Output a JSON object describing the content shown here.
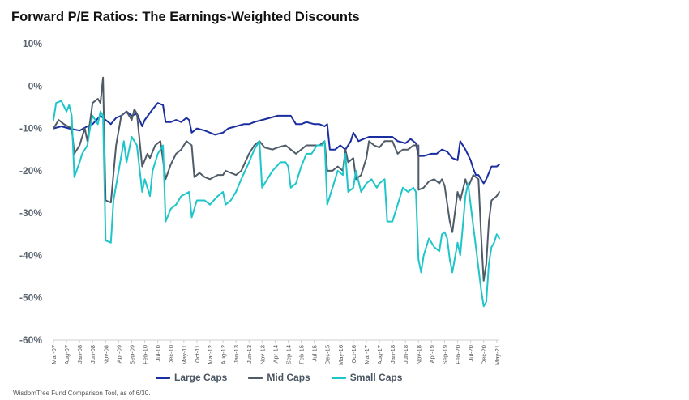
{
  "chart_data": {
    "type": "line",
    "title": "Forward P/E Ratios: The Earnings-Weighted Discounts",
    "xlabel": "",
    "ylabel": "",
    "ylim": [
      -60,
      10
    ],
    "y_ticks": [
      10,
      0,
      -10,
      -20,
      -30,
      -40,
      -50,
      -60
    ],
    "y_tick_labels": [
      "10%",
      "0%",
      "-10%",
      "-20%",
      "-30%",
      "-40%",
      "-50%",
      "-60%"
    ],
    "x_tick_labels": [
      "Mar-07",
      "Aug-07",
      "Jan-08",
      "Jun-08",
      "Nov-08",
      "Apr-09",
      "Sep-09",
      "Feb-10",
      "Jul-10",
      "Dec-10",
      "May-11",
      "Oct-11",
      "Mar-12",
      "Aug-12",
      "Jan-13",
      "Jun-13",
      "Nov-13",
      "Apr-14",
      "Sep-14",
      "Feb-15",
      "Jul-15",
      "Dec-15",
      "May-16",
      "Oct-16",
      "Mar-17",
      "Aug-17",
      "Jan-18",
      "Jun-18",
      "Nov-18",
      "Apr-19",
      "Sep-19",
      "Feb-20",
      "Jul-20",
      "Dec-20",
      "May-21"
    ],
    "x_range": [
      "Mar-07",
      "Jun-21"
    ],
    "grid": false,
    "legend_position": "bottom",
    "series": [
      {
        "name": "Large Caps",
        "color": "#1a2ea0",
        "points": [
          [
            "Mar-07",
            -10
          ],
          [
            "Jun-07",
            -9.5
          ],
          [
            "Sep-07",
            -10
          ],
          [
            "Jan-08",
            -10.5
          ],
          [
            "Apr-08",
            -9.5
          ],
          [
            "Jun-08",
            -9
          ],
          [
            "Sep-08",
            -7
          ],
          [
            "Nov-08",
            -8
          ],
          [
            "Jan-09",
            -9
          ],
          [
            "Mar-09",
            -7.5
          ],
          [
            "May-09",
            -7
          ],
          [
            "Jul-09",
            -6
          ],
          [
            "Sep-09",
            -7
          ],
          [
            "Nov-09",
            -6.5
          ],
          [
            "Jan-10",
            -9.5
          ],
          [
            "Feb-10",
            -8
          ],
          [
            "May-10",
            -5.5
          ],
          [
            "Jul-10",
            -4
          ],
          [
            "Sep-10",
            -4.5
          ],
          [
            "Oct-10",
            -8.5
          ],
          [
            "Dec-10",
            -8.5
          ],
          [
            "Feb-11",
            -8
          ],
          [
            "Apr-11",
            -8.5
          ],
          [
            "Jun-11",
            -7.5
          ],
          [
            "Jul-11",
            -8
          ],
          [
            "Aug-11",
            -11
          ],
          [
            "Oct-11",
            -10
          ],
          [
            "Jan-12",
            -10.5
          ],
          [
            "Mar-12",
            -11
          ],
          [
            "May-12",
            -11.5
          ],
          [
            "Aug-12",
            -11
          ],
          [
            "Oct-12",
            -10
          ],
          [
            "Jan-13",
            -9.5
          ],
          [
            "Apr-13",
            -9
          ],
          [
            "Jun-13",
            -9
          ],
          [
            "Aug-13",
            -8.5
          ],
          [
            "Nov-13",
            -8
          ],
          [
            "Feb-14",
            -7.5
          ],
          [
            "May-14",
            -7
          ],
          [
            "Aug-14",
            -7
          ],
          [
            "Oct-14",
            -7
          ],
          [
            "Dec-14",
            -9
          ],
          [
            "Feb-15",
            -9
          ],
          [
            "Apr-15",
            -8.5
          ],
          [
            "Jul-15",
            -9
          ],
          [
            "Sep-15",
            -9
          ],
          [
            "Nov-15",
            -9.5
          ],
          [
            "Dec-15",
            -9
          ],
          [
            "Jan-16",
            -15
          ],
          [
            "Mar-16",
            -15
          ],
          [
            "May-16",
            -14
          ],
          [
            "Jul-16",
            -15
          ],
          [
            "Sep-16",
            -13
          ],
          [
            "Oct-16",
            -11
          ],
          [
            "Dec-16",
            -13
          ],
          [
            "Feb-17",
            -12.5
          ],
          [
            "Apr-17",
            -12
          ],
          [
            "Jul-17",
            -12
          ],
          [
            "Oct-17",
            -12
          ],
          [
            "Jan-18",
            -12
          ],
          [
            "Mar-18",
            -13
          ],
          [
            "Jun-18",
            -13.5
          ],
          [
            "Aug-18",
            -12.5
          ],
          [
            "Oct-18",
            -13.5
          ],
          [
            "Nov-18",
            -16.5
          ],
          [
            "Jan-19",
            -16.5
          ],
          [
            "Apr-19",
            -16
          ],
          [
            "Jun-19",
            -16
          ],
          [
            "Aug-19",
            -15
          ],
          [
            "Oct-19",
            -15.5
          ],
          [
            "Dec-19",
            -17
          ],
          [
            "Feb-20",
            -17.5
          ],
          [
            "Mar-20",
            -13
          ],
          [
            "May-20",
            -15
          ],
          [
            "Jul-20",
            -17.5
          ],
          [
            "Aug-20",
            -19.5
          ],
          [
            "Sep-20",
            -21
          ],
          [
            "Oct-20",
            -21
          ],
          [
            "Dec-20",
            -23
          ],
          [
            "Jan-21",
            -22
          ],
          [
            "Mar-21",
            -19
          ],
          [
            "May-21",
            -19
          ],
          [
            "Jun-21",
            -18.5
          ]
        ]
      },
      {
        "name": "Mid Caps",
        "color": "#4f5b67",
        "points": [
          [
            "Mar-07",
            -10
          ],
          [
            "May-07",
            -8
          ],
          [
            "Jul-07",
            -9
          ],
          [
            "Oct-07",
            -10
          ],
          [
            "Nov-07",
            -16
          ],
          [
            "Jan-08",
            -14
          ],
          [
            "Mar-08",
            -10
          ],
          [
            "Apr-08",
            -13
          ],
          [
            "Jun-08",
            -4
          ],
          [
            "Aug-08",
            -3
          ],
          [
            "Sep-08",
            -4
          ],
          [
            "Oct-08",
            2
          ],
          [
            "Nov-08",
            -27
          ],
          [
            "Jan-09",
            -27.5
          ],
          [
            "Mar-09",
            -14
          ],
          [
            "May-09",
            -7
          ],
          [
            "Jul-09",
            -6
          ],
          [
            "Sep-09",
            -8
          ],
          [
            "Oct-09",
            -5.5
          ],
          [
            "Nov-09",
            -6.5
          ],
          [
            "Jan-10",
            -19
          ],
          [
            "Mar-10",
            -16
          ],
          [
            "Apr-10",
            -17
          ],
          [
            "Jun-10",
            -14
          ],
          [
            "Aug-10",
            -13
          ],
          [
            "Oct-10",
            -22
          ],
          [
            "Dec-10",
            -18.5
          ],
          [
            "Feb-11",
            -16
          ],
          [
            "Apr-11",
            -15
          ],
          [
            "Jun-11",
            -13
          ],
          [
            "Aug-11",
            -14
          ],
          [
            "Sep-11",
            -21.5
          ],
          [
            "Nov-11",
            -20.5
          ],
          [
            "Jan-12",
            -21.5
          ],
          [
            "Mar-12",
            -22
          ],
          [
            "Jun-12",
            -21
          ],
          [
            "Aug-12",
            -21
          ],
          [
            "Sep-12",
            -20
          ],
          [
            "Nov-12",
            -20.5
          ],
          [
            "Jan-13",
            -21
          ],
          [
            "Mar-13",
            -20
          ],
          [
            "Jun-13",
            -16
          ],
          [
            "Aug-13",
            -14
          ],
          [
            "Oct-13",
            -13
          ],
          [
            "Dec-13",
            -14.5
          ],
          [
            "Mar-14",
            -15
          ],
          [
            "May-14",
            -14.5
          ],
          [
            "Aug-14",
            -14
          ],
          [
            "Oct-14",
            -15
          ],
          [
            "Dec-14",
            -16
          ],
          [
            "Feb-15",
            -15
          ],
          [
            "Apr-15",
            -14
          ],
          [
            "Jul-15",
            -14
          ],
          [
            "Sep-15",
            -14
          ],
          [
            "Nov-15",
            -13
          ],
          [
            "Dec-15",
            -20
          ],
          [
            "Feb-16",
            -20
          ],
          [
            "Apr-16",
            -19
          ],
          [
            "Jun-16",
            -20
          ],
          [
            "Jul-16",
            -15
          ],
          [
            "Aug-16",
            -18
          ],
          [
            "Oct-16",
            -17
          ],
          [
            "Nov-16",
            -22
          ],
          [
            "Jan-17",
            -21
          ],
          [
            "Mar-17",
            -17
          ],
          [
            "Apr-17",
            -13
          ],
          [
            "Jun-17",
            -14
          ],
          [
            "Aug-17",
            -14.5
          ],
          [
            "Oct-17",
            -13
          ],
          [
            "Jan-18",
            -13
          ],
          [
            "Mar-18",
            -16
          ],
          [
            "May-18",
            -15
          ],
          [
            "Jul-18",
            -15
          ],
          [
            "Sep-18",
            -14
          ],
          [
            "Nov-18",
            -14
          ],
          [
            "Nov-18",
            -24.5
          ],
          [
            "Jan-19",
            -24
          ],
          [
            "Mar-19",
            -22.5
          ],
          [
            "May-19",
            -22
          ],
          [
            "Jul-19",
            -23
          ],
          [
            "Aug-19",
            -22
          ],
          [
            "Sep-19",
            -23.5
          ],
          [
            "Nov-19",
            -32
          ],
          [
            "Dec-19",
            -34.5
          ],
          [
            "Feb-20",
            -25
          ],
          [
            "Mar-20",
            -27
          ],
          [
            "May-20",
            -22
          ],
          [
            "Jun-20",
            -24
          ],
          [
            "Aug-20",
            -21
          ],
          [
            "Oct-20",
            -22
          ],
          [
            "Nov-20",
            -35
          ],
          [
            "Dec-20",
            -46
          ],
          [
            "Jan-21",
            -42
          ],
          [
            "Feb-21",
            -32
          ],
          [
            "Mar-21",
            -27
          ],
          [
            "May-21",
            -26
          ],
          [
            "Jun-21",
            -25
          ]
        ]
      },
      {
        "name": "Small Caps",
        "color": "#1ec5c9",
        "points": [
          [
            "Mar-07",
            -8
          ],
          [
            "Apr-07",
            -4
          ],
          [
            "Jun-07",
            -3.5
          ],
          [
            "Aug-07",
            -6
          ],
          [
            "Sep-07",
            -4.5
          ],
          [
            "Oct-07",
            -7
          ],
          [
            "Nov-07",
            -21.5
          ],
          [
            "Jan-08",
            -18
          ],
          [
            "Feb-08",
            -16
          ],
          [
            "Apr-08",
            -14
          ],
          [
            "May-08",
            -10
          ],
          [
            "Jun-08",
            -7
          ],
          [
            "Aug-08",
            -9
          ],
          [
            "Sep-08",
            -6
          ],
          [
            "Oct-08",
            -7
          ],
          [
            "Nov-08",
            -36.5
          ],
          [
            "Jan-09",
            -37
          ],
          [
            "Feb-09",
            -27
          ],
          [
            "Apr-09",
            -20
          ],
          [
            "Jun-09",
            -13
          ],
          [
            "Jul-09",
            -18
          ],
          [
            "Sep-09",
            -12
          ],
          [
            "Nov-09",
            -14
          ],
          [
            "Jan-10",
            -25
          ],
          [
            "Feb-10",
            -22
          ],
          [
            "Apr-10",
            -26
          ],
          [
            "May-10",
            -20
          ],
          [
            "Jul-10",
            -16
          ],
          [
            "Sep-10",
            -14
          ],
          [
            "Oct-10",
            -32
          ],
          [
            "Dec-10",
            -29
          ],
          [
            "Feb-11",
            -28
          ],
          [
            "Apr-11",
            -26
          ],
          [
            "Jul-11",
            -25
          ],
          [
            "Aug-11",
            -31
          ],
          [
            "Oct-11",
            -27
          ],
          [
            "Jan-12",
            -27
          ],
          [
            "Mar-12",
            -28
          ],
          [
            "Jun-12",
            -26
          ],
          [
            "Aug-12",
            -25
          ],
          [
            "Sep-12",
            -28
          ],
          [
            "Nov-12",
            -27
          ],
          [
            "Jan-13",
            -25
          ],
          [
            "Mar-13",
            -22
          ],
          [
            "Jun-13",
            -18
          ],
          [
            "Aug-13",
            -15
          ],
          [
            "Oct-13",
            -13
          ],
          [
            "Nov-13",
            -24
          ],
          [
            "Jan-14",
            -22
          ],
          [
            "Mar-14",
            -20
          ],
          [
            "Jun-14",
            -18
          ],
          [
            "Aug-14",
            -18
          ],
          [
            "Sep-14",
            -19
          ],
          [
            "Oct-14",
            -24
          ],
          [
            "Dec-14",
            -23
          ],
          [
            "Feb-15",
            -19
          ],
          [
            "Apr-15",
            -16
          ],
          [
            "Jun-15",
            -16
          ],
          [
            "Aug-15",
            -14
          ],
          [
            "Oct-15",
            -14
          ],
          [
            "Nov-15",
            -13
          ],
          [
            "Dec-15",
            -28
          ],
          [
            "Feb-16",
            -24
          ],
          [
            "Apr-16",
            -20
          ],
          [
            "Jun-16",
            -21
          ],
          [
            "Jul-16",
            -16
          ],
          [
            "Aug-16",
            -25
          ],
          [
            "Oct-16",
            -24
          ],
          [
            "Nov-16",
            -20
          ],
          [
            "Jan-17",
            -25
          ],
          [
            "Mar-17",
            -23
          ],
          [
            "May-17",
            -22
          ],
          [
            "Jul-17",
            -24
          ],
          [
            "Aug-17",
            -23
          ],
          [
            "Oct-17",
            -22
          ],
          [
            "Nov-17",
            -32
          ],
          [
            "Jan-18",
            -32
          ],
          [
            "Mar-18",
            -28
          ],
          [
            "May-18",
            -24
          ],
          [
            "Jul-18",
            -25
          ],
          [
            "Sep-18",
            -24
          ],
          [
            "Oct-18",
            -25
          ],
          [
            "Nov-18",
            -41
          ],
          [
            "Dec-18",
            -44
          ],
          [
            "Jan-19",
            -40
          ],
          [
            "Mar-19",
            -36
          ],
          [
            "May-19",
            -38
          ],
          [
            "Jul-19",
            -39
          ],
          [
            "Aug-19",
            -35
          ],
          [
            "Sep-19",
            -34.5
          ],
          [
            "Oct-19",
            -36
          ],
          [
            "Nov-19",
            -41
          ],
          [
            "Dec-19",
            -44
          ],
          [
            "Feb-20",
            -37
          ],
          [
            "Mar-20",
            -40
          ],
          [
            "May-20",
            -26
          ],
          [
            "Jun-20",
            -23
          ],
          [
            "Aug-20",
            -33
          ],
          [
            "Sep-20",
            -38
          ],
          [
            "Nov-20",
            -48
          ],
          [
            "Dec-20",
            -52
          ],
          [
            "Jan-21",
            -51
          ],
          [
            "Feb-21",
            -42
          ],
          [
            "Mar-21",
            -38
          ],
          [
            "Apr-21",
            -37
          ],
          [
            "May-21",
            -35
          ],
          [
            "Jun-21",
            -36
          ]
        ]
      }
    ]
  },
  "legend": {
    "items": [
      "Large Caps",
      "Mid Caps",
      "Small Caps"
    ]
  },
  "source_note": "WisdomTree Fund Comparison Tool, as of 6/30."
}
